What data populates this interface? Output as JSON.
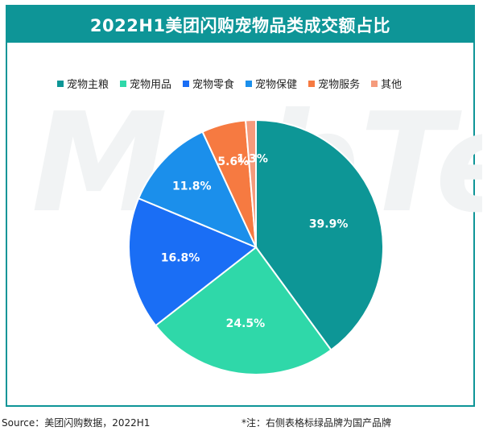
{
  "title": "2022H1美团闪购宠物品类成交额占比",
  "watermark": "MobTech",
  "source": "Source：美团闪购数据，2022H1",
  "note": "*注：右侧表格标绿品牌为国产品牌",
  "colors": {
    "frame": "#0e9597",
    "slices": [
      "#0d9696",
      "#2fd8a9",
      "#1a6ef5",
      "#1b8feb",
      "#f67a41",
      "#f59b7c"
    ]
  },
  "chart_data": {
    "type": "pie",
    "title": "2022H1美团闪购宠物品类成交额占比",
    "legend_position": "top",
    "categories": [
      "宠物主粮",
      "宠物用品",
      "宠物零食",
      "宠物保健",
      "宠物服务",
      "其他"
    ],
    "values": [
      39.9,
      24.5,
      16.8,
      11.8,
      5.6,
      1.3
    ],
    "labels": [
      "39.9%",
      "24.5%",
      "16.8%",
      "11.8%",
      "5.6%",
      "1.3%"
    ]
  }
}
